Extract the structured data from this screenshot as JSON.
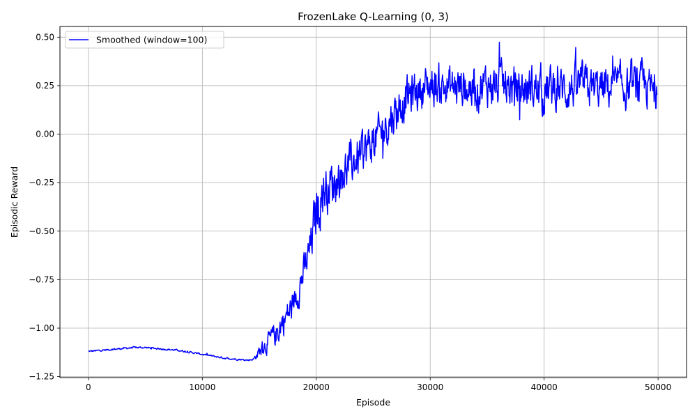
{
  "chart_data": {
    "type": "line",
    "title": "FrozenLake Q-Learning (0, 3)",
    "xlabel": "Episode",
    "ylabel": "Episodic Reward",
    "xlim": [
      -2500,
      52500
    ],
    "ylim": [
      -1.255,
      0.555
    ],
    "xticks": [
      0,
      10000,
      20000,
      30000,
      40000,
      50000
    ],
    "xtick_labels": [
      "0",
      "10000",
      "20000",
      "30000",
      "40000",
      "50000"
    ],
    "yticks": [
      -1.25,
      -1.0,
      -0.75,
      -0.5,
      -0.25,
      0.0,
      0.25,
      0.5
    ],
    "ytick_labels": [
      "−1.25",
      "−1.00",
      "−0.75",
      "−0.50",
      "−0.25",
      "0.00",
      "0.25",
      "0.50"
    ],
    "grid": true,
    "legend_position": "upper-left",
    "series": [
      {
        "name": "Smoothed (window=100)",
        "color": "#0000ff",
        "x": [
          0,
          1000,
          2000,
          3000,
          4000,
          5000,
          6000,
          7000,
          8000,
          9000,
          10000,
          11000,
          12000,
          13000,
          14000,
          14500,
          15000,
          15500,
          16000,
          16500,
          17000,
          17500,
          18000,
          18500,
          19000,
          19500,
          20000,
          20500,
          21000,
          21500,
          22000,
          22500,
          23000,
          23500,
          24000,
          24500,
          25000,
          25500,
          26000,
          26500,
          27000,
          27500,
          28000,
          28500,
          29000,
          29500,
          30000,
          31000,
          32000,
          33000,
          34000,
          35000,
          36000,
          37000,
          38000,
          39000,
          40000,
          41000,
          42000,
          43000,
          44000,
          45000,
          46000,
          47000,
          48000,
          49000,
          49900
        ],
        "y": [
          -1.12,
          -1.115,
          -1.11,
          -1.105,
          -1.1,
          -1.1,
          -1.105,
          -1.11,
          -1.115,
          -1.125,
          -1.135,
          -1.145,
          -1.155,
          -1.16,
          -1.165,
          -1.16,
          -1.12,
          -1.09,
          -1.06,
          -1.03,
          -0.97,
          -0.93,
          -0.88,
          -0.78,
          -0.7,
          -0.58,
          -0.4,
          -0.3,
          -0.27,
          -0.25,
          -0.22,
          -0.19,
          -0.16,
          -0.13,
          -0.1,
          -0.07,
          -0.04,
          -0.01,
          0.03,
          0.08,
          0.12,
          0.16,
          0.19,
          0.21,
          0.23,
          0.24,
          0.25,
          0.25,
          0.24,
          0.25,
          0.23,
          0.26,
          0.25,
          0.24,
          0.23,
          0.24,
          0.22,
          0.24,
          0.23,
          0.25,
          0.24,
          0.23,
          0.25,
          0.24,
          0.24,
          0.25,
          0.2
        ],
        "noise": [
          0.004,
          0.004,
          0.004,
          0.004,
          0.004,
          0.004,
          0.004,
          0.004,
          0.004,
          0.004,
          0.004,
          0.004,
          0.004,
          0.004,
          0.004,
          0.005,
          0.03,
          0.04,
          0.05,
          0.06,
          0.07,
          0.07,
          0.07,
          0.08,
          0.08,
          0.1,
          0.13,
          0.12,
          0.11,
          0.11,
          0.1,
          0.1,
          0.1,
          0.1,
          0.1,
          0.1,
          0.1,
          0.1,
          0.1,
          0.1,
          0.1,
          0.1,
          0.1,
          0.1,
          0.1,
          0.1,
          0.1,
          0.1,
          0.1,
          0.1,
          0.1,
          0.1,
          0.1,
          0.1,
          0.1,
          0.1,
          0.11,
          0.1,
          0.1,
          0.1,
          0.1,
          0.1,
          0.1,
          0.1,
          0.1,
          0.1,
          0.08
        ]
      }
    ]
  }
}
